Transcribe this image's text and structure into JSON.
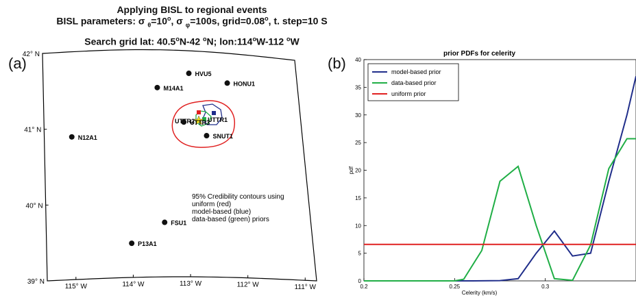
{
  "header": {
    "title1": "Applying BISL to regional events",
    "title2": "BISL parameters: σ θ=10°, σ φ=100s, grid=0.08°, t. step=10 S",
    "title3": "Search grid lat: 40.5°N-42 °N; lon:114°W-112 °W"
  },
  "panels": {
    "a_label": "(a)",
    "b_label": "(b)"
  },
  "map": {
    "lat_ticks": [
      "42° N",
      "41° N",
      "40° N",
      "39° N"
    ],
    "lon_ticks": [
      "115° W",
      "114° W",
      "113° W",
      "112° W",
      "111° W"
    ],
    "stations": [
      {
        "name": "HVU5",
        "lon": -112.8,
        "lat": 41.7
      },
      {
        "name": "HONU1",
        "lon": -112.1,
        "lat": 41.6
      },
      {
        "name": "M14A1",
        "lon": -113.4,
        "lat": 41.5
      },
      {
        "name": "UTTR3",
        "lon": -112.95,
        "lat": 41.05
      },
      {
        "name": "SNUT1",
        "lon": -112.55,
        "lat": 40.88
      },
      {
        "name": "N12A1",
        "lon": -115.0,
        "lat": 40.88
      },
      {
        "name": "FSU1",
        "lon": -113.4,
        "lat": 39.72
      },
      {
        "name": "P13A1",
        "lon": -114.0,
        "lat": 39.45
      }
    ],
    "overlay_labels": {
      "uttr2": "UTTR2",
      "uttr1": "UTTR1"
    },
    "legend_text": [
      "95% Credibility contours using",
      "uniform (red)",
      "model-based (blue)",
      "data-based (green) priors"
    ],
    "colors": {
      "uniform": "#e02020",
      "model": "#1f2d8a",
      "data": "#1fae45",
      "star": "#f2e21a"
    }
  },
  "chart_data": {
    "type": "line",
    "title": "prior PDFs for celerity",
    "xlabel": "Celerity (km/s)",
    "ylabel": "pdf",
    "xlim": [
      0.2,
      0.35
    ],
    "ylim": [
      0,
      40
    ],
    "xticks": [
      0.2,
      0.25,
      0.3
    ],
    "yticks": [
      0,
      5,
      10,
      15,
      20,
      25,
      30,
      35,
      40
    ],
    "legend_position": "top-left",
    "series": [
      {
        "name": "model-based prior",
        "color": "#1f2d8a",
        "x": [
          0.2,
          0.25,
          0.26,
          0.275,
          0.285,
          0.295,
          0.305,
          0.315,
          0.325,
          0.335,
          0.345,
          0.35
        ],
        "y": [
          0,
          0,
          0,
          0.05,
          0.4,
          5,
          9,
          4.5,
          5,
          18,
          30,
          37
        ]
      },
      {
        "name": "data-based prior",
        "color": "#1fae45",
        "x": [
          0.2,
          0.25,
          0.255,
          0.265,
          0.275,
          0.285,
          0.295,
          0.305,
          0.315,
          0.325,
          0.335,
          0.345,
          0.35
        ],
        "y": [
          0,
          0,
          0.3,
          5.5,
          18,
          20.7,
          10,
          0.4,
          0.1,
          6.5,
          20.3,
          25.7,
          25.7
        ]
      },
      {
        "name": "uniform prior",
        "color": "#e02020",
        "x": [
          0.2,
          0.35
        ],
        "y": [
          6.6,
          6.6
        ]
      }
    ]
  }
}
